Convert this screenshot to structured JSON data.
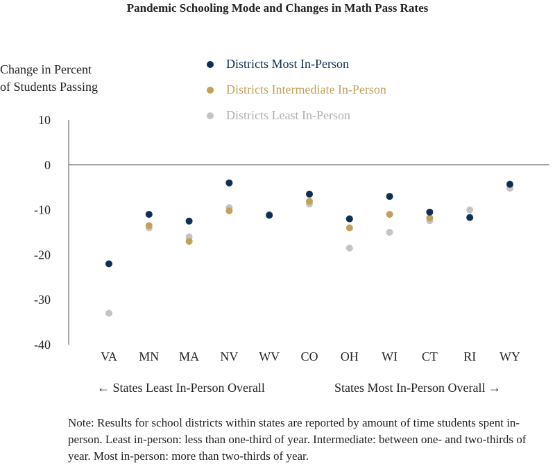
{
  "chart_data": {
    "type": "scatter",
    "title": "Pandemic Schooling Mode and Changes in Math Pass Rates",
    "ylabel": "Change in Percent of Students Passing",
    "ylabel_lines": [
      "Change in Percent",
      "of Students Passing"
    ],
    "ylim": [
      -40,
      10
    ],
    "yticks": [
      10,
      0,
      -10,
      -20,
      -30,
      -40
    ],
    "categories": [
      "VA",
      "MN",
      "MA",
      "NV",
      "WV",
      "CO",
      "OH",
      "WI",
      "CT",
      "RI",
      "WY"
    ],
    "series": [
      {
        "name": "Districts Least In-Person",
        "color": "#c4c4c4",
        "values": [
          -33,
          -14,
          -16,
          -9.5,
          -11,
          -8.7,
          -18.5,
          -15,
          -12.4,
          -10,
          -5.2
        ]
      },
      {
        "name": "Districts Intermediate In-Person",
        "color": "#c2a25a",
        "values": [
          null,
          -13.5,
          -17,
          -10.2,
          null,
          -8.1,
          -14,
          -11,
          -11.8,
          null,
          null
        ]
      },
      {
        "name": "Districts Most In-Person",
        "color": "#0e2f56",
        "values": [
          -22,
          -11,
          -12.5,
          -4,
          -11.2,
          -6.5,
          -12,
          -7,
          -10.5,
          -11.7,
          -4.3
        ]
      }
    ],
    "legend_order": [
      "Districts Most In-Person",
      "Districts Intermediate In-Person",
      "Districts Least In-Person"
    ],
    "legend_placement": "top-center",
    "grid": false,
    "annotations": {
      "left": "← States Least In-Person Overall",
      "right": "States Most In-Person Overall →"
    },
    "note": "Note: Results for school districts within states are reported by amount of time students spent in-person. Least in-person: less than one-third of year. Intermediate: between one- and two-thirds of year. Most in-person: more than two-thirds of year."
  }
}
